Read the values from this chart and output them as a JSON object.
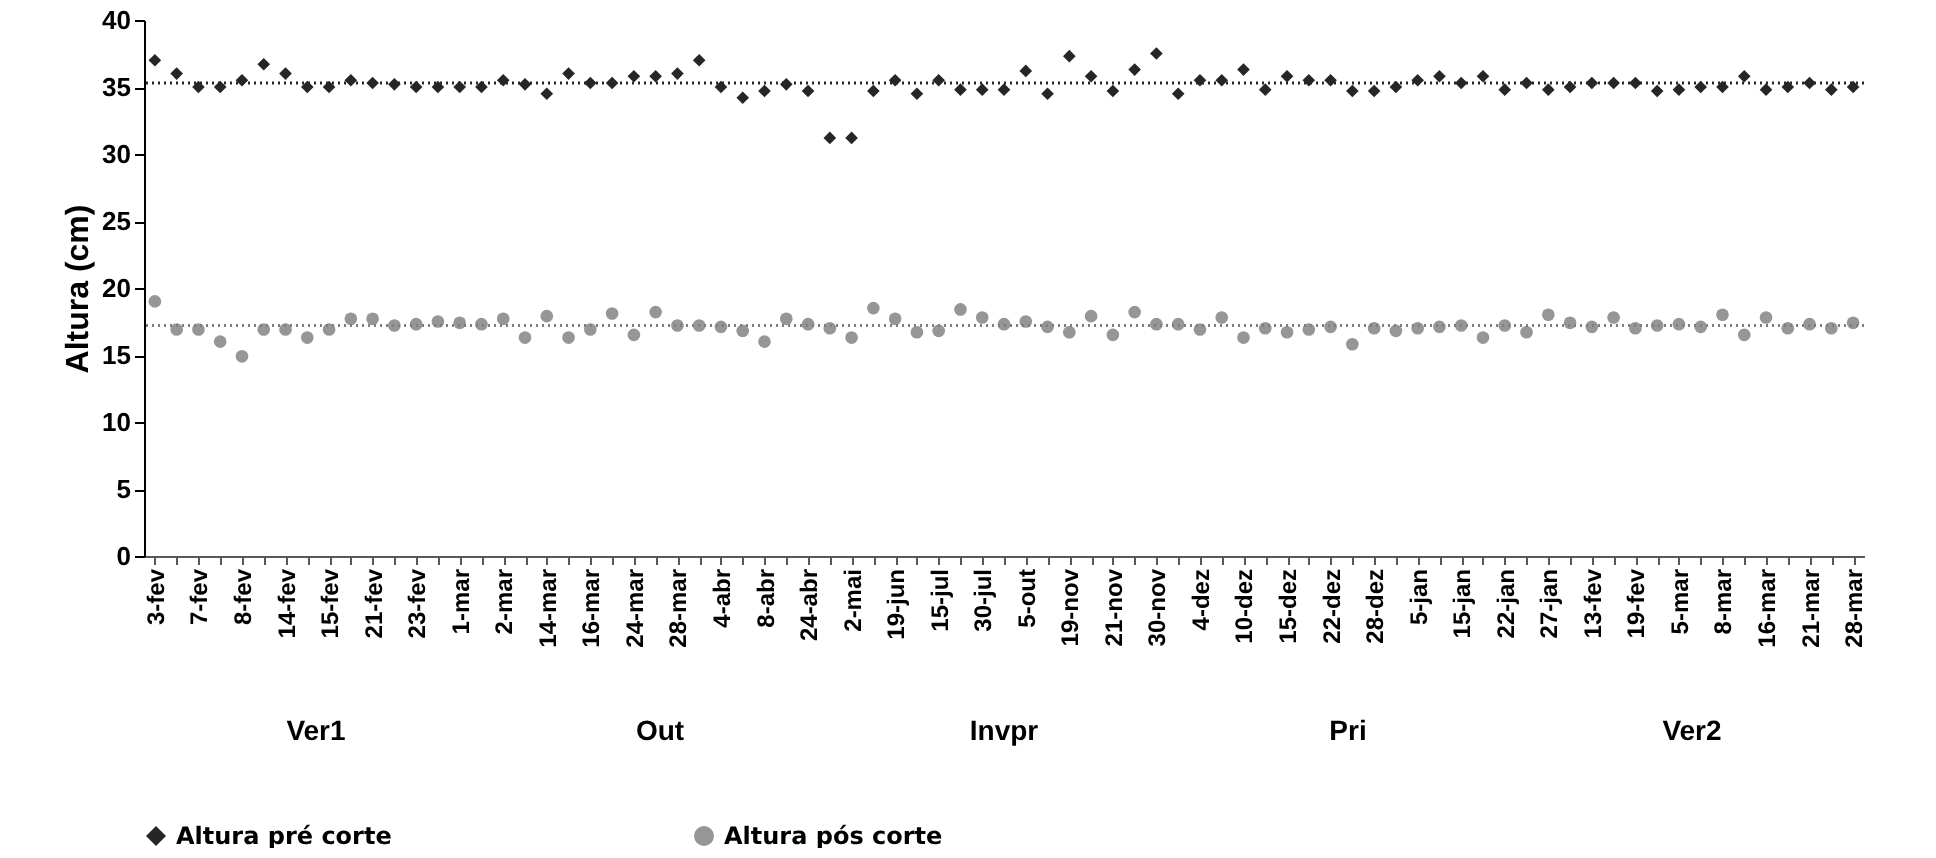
{
  "chart_data": {
    "type": "scatter",
    "ylabel": "Altura (cm)",
    "categories": [
      "3-fev",
      null,
      "7-fev",
      null,
      "8-fev",
      null,
      "14-fev",
      null,
      "15-fev",
      null,
      "21-fev",
      null,
      "23-fev",
      null,
      "1-mar",
      null,
      "2-mar",
      null,
      "14-mar",
      null,
      "16-mar",
      null,
      "24-mar",
      null,
      "28-mar",
      null,
      "4-abr",
      null,
      "8-abr",
      null,
      "24-abr",
      null,
      "2-mai",
      null,
      "19-jun",
      null,
      "15-jul",
      null,
      "30-jul",
      null,
      "5-out",
      null,
      "19-nov",
      null,
      "21-nov",
      null,
      "30-nov",
      null,
      "4-dez",
      null,
      "10-dez",
      null,
      "15-dez",
      null,
      "22-dez",
      null,
      "28-dez",
      null,
      "5-jan",
      null,
      "15-jan",
      null,
      "22-jan",
      null,
      "27-jan",
      null,
      "13-fev",
      null,
      "19-fev",
      null,
      "5-mar",
      null,
      "8-mar",
      null,
      "16-mar",
      null,
      "21-mar",
      null,
      "28-mar"
    ],
    "series": [
      {
        "name": "Altura pré corte",
        "color": "#262626",
        "marker": "diamond",
        "values": [
          37,
          36,
          35,
          35,
          35.5,
          36.7,
          36,
          35,
          35,
          35.5,
          35.3,
          35.2,
          35,
          35,
          35,
          35,
          35.5,
          35.2,
          34.5,
          36,
          35.3,
          35.3,
          35.8,
          35.8,
          36,
          37,
          35,
          34.2,
          34.7,
          35.2,
          34.7,
          31.2,
          31.2,
          34.7,
          35.5,
          34.5,
          35.5,
          34.8,
          34.8,
          34.8,
          36.2,
          34.5,
          37.3,
          35.8,
          34.7,
          36.3,
          37.5,
          34.5,
          35.5,
          35.5,
          36.3,
          34.8,
          35.8,
          35.5,
          35.5,
          34.7,
          34.7,
          35,
          35.5,
          35.8,
          35.3,
          35.8,
          34.8,
          35.3,
          34.8,
          35,
          35.3,
          35.3,
          35.3,
          34.7,
          34.8,
          35,
          35,
          35.8,
          34.8,
          35,
          35.3,
          34.8,
          35
        ]
      },
      {
        "name": "Altura pós corte",
        "color": "#969696",
        "marker": "circle",
        "values": [
          19.0,
          16.9,
          16.9,
          16.0,
          14.9,
          16.9,
          16.9,
          16.3,
          16.9,
          17.7,
          17.7,
          17.2,
          17.3,
          17.5,
          17.4,
          17.3,
          17.7,
          16.3,
          17.9,
          16.3,
          16.9,
          18.1,
          16.5,
          18.2,
          17.2,
          17.2,
          17.1,
          16.8,
          16.0,
          17.7,
          17.3,
          17.0,
          16.3,
          18.5,
          17.7,
          16.7,
          16.8,
          18.4,
          17.8,
          17.3,
          17.5,
          17.1,
          16.7,
          17.9,
          16.5,
          18.2,
          17.3,
          17.3,
          16.9,
          17.8,
          16.3,
          17.0,
          16.7,
          16.9,
          17.1,
          15.8,
          17.0,
          16.8,
          17.0,
          17.1,
          17.2,
          16.3,
          17.2,
          16.7,
          18.0,
          17.4,
          17.1,
          17.8,
          17.0,
          17.2,
          17.3,
          17.1,
          18.0,
          16.5,
          17.8,
          17.0,
          17.3,
          17.0,
          17.4
        ]
      }
    ],
    "ylim": [
      0,
      40
    ],
    "yticks": [
      0,
      5,
      10,
      15,
      20,
      25,
      30,
      35,
      40
    ],
    "ref_lines": [
      {
        "axis": "y",
        "value": 35.3,
        "color": "#262626",
        "line_style": "dotted"
      },
      {
        "axis": "y",
        "value": 17.2,
        "color": "#7f7f7f",
        "line_style": "dotted"
      }
    ],
    "annotations": [
      "Ver1",
      "Out",
      "Invpr",
      "Pri",
      "Ver2"
    ],
    "grid": false,
    "legend": "bottom"
  }
}
